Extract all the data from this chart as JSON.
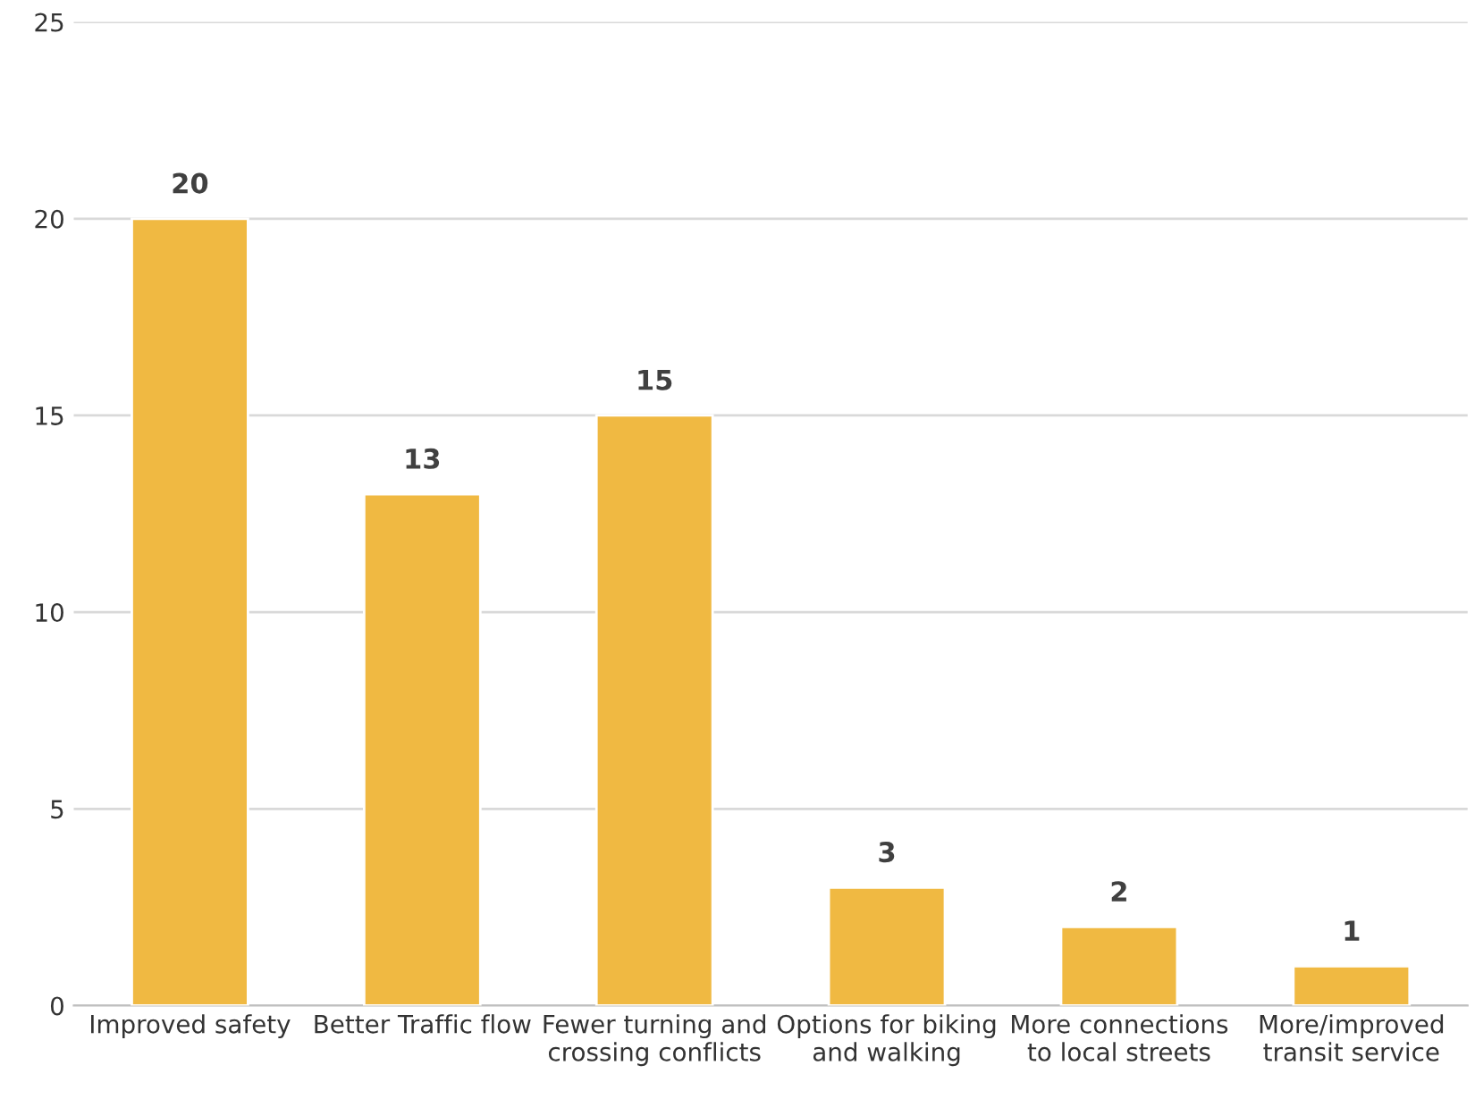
{
  "chart_data": {
    "type": "bar",
    "categories": [
      "Improved safety",
      "Better Traffic flow",
      "Fewer turning and\ncrossing conflicts",
      "Options for biking\nand walking",
      "More connections\nto local streets",
      "More/improved\ntransit service"
    ],
    "values": [
      20,
      13,
      15,
      3,
      2,
      1
    ],
    "color": "#f0b942",
    "ylim": [
      0,
      25
    ],
    "yticks": [
      0,
      5,
      10,
      15,
      20,
      25
    ],
    "grid": "y",
    "data_labels": true
  }
}
